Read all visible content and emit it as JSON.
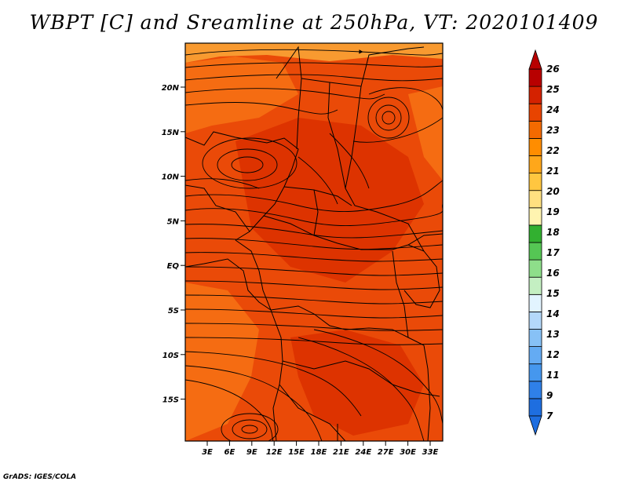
{
  "title": "WBPT [C] and Sreamline at 250hPa, VT: 2020101409",
  "credit": "GrADS: IGES/COLA",
  "map": {
    "lat_labels": [
      "20N",
      "15N",
      "10N",
      "5N",
      "EQ",
      "5S",
      "10S",
      "15S"
    ],
    "lon_labels": [
      "3E",
      "6E",
      "9E",
      "12E",
      "15E",
      "18E",
      "21E",
      "24E",
      "27E",
      "30E",
      "33E"
    ]
  },
  "colorbar": {
    "labels": [
      "7",
      "9",
      "11",
      "12",
      "13",
      "14",
      "15",
      "16",
      "17",
      "18",
      "19",
      "20",
      "21",
      "22",
      "23",
      "24",
      "25",
      "26"
    ],
    "colors": [
      "#1e6ee0",
      "#2f80e8",
      "#4597ee",
      "#64abf3",
      "#87c1f6",
      "#b4d8fa",
      "#e2f4ff",
      "#c4efc2",
      "#8ede8a",
      "#55c654",
      "#32b030",
      "#fff4b0",
      "#ffe080",
      "#ffc640",
      "#ffa71a",
      "#ff8d00",
      "#f46a00",
      "#e84400",
      "#d42200",
      "#b80000"
    ],
    "min_arrow_color": "#1e6ee0",
    "max_arrow_color": "#b80000"
  },
  "field_colors": {
    "dominant": "#ea4a08",
    "warm_zone": "#dd3300",
    "cool_zone": "#f56c12",
    "edge_zone": "#f89a30"
  }
}
